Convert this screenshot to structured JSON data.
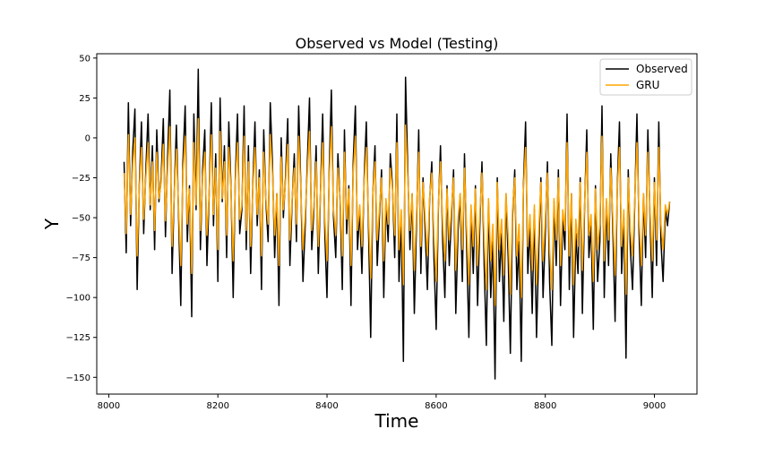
{
  "chart_data": {
    "type": "line",
    "title": "Observed vs Model (Testing)",
    "xlabel": "Time",
    "ylabel": "Y",
    "xlim": [
      7978,
      9078
    ],
    "ylim": [
      -160.5,
      52.7
    ],
    "xticks": [
      8000,
      8200,
      8400,
      8600,
      8800,
      9000
    ],
    "yticks": [
      50,
      25,
      0,
      -25,
      -50,
      -75,
      -100,
      -125,
      -150
    ],
    "grid": false,
    "legend_position": "top-right",
    "x_start": 8028,
    "x_step": 4,
    "series": [
      {
        "name": "Observed",
        "color": "#000000",
        "values": [
          -15,
          -72,
          22,
          -55,
          -8,
          18,
          -95,
          -30,
          10,
          -60,
          -20,
          15,
          -45,
          -5,
          -70,
          5,
          -40,
          -25,
          12,
          -62,
          -10,
          30,
          -85,
          -35,
          8,
          -50,
          -105,
          -15,
          20,
          -65,
          -30,
          -112,
          15,
          -45,
          43,
          -70,
          -20,
          5,
          -80,
          -35,
          22,
          -55,
          -10,
          -90,
          25,
          -40,
          -5,
          -75,
          10,
          -30,
          -100,
          -25,
          15,
          -60,
          -45,
          20,
          -70,
          -5,
          -85,
          -30,
          10,
          -55,
          -20,
          -95,
          5,
          -40,
          -65,
          22,
          -15,
          -75,
          -35,
          -105,
          0,
          -50,
          -25,
          12,
          -80,
          -40,
          -10,
          -65,
          20,
          -30,
          -90,
          -55,
          -15,
          25,
          -70,
          -45,
          -5,
          -85,
          -35,
          15,
          -60,
          -100,
          -20,
          30,
          -50,
          -75,
          -10,
          -40,
          -95,
          5,
          -60,
          -30,
          -105,
          -15,
          20,
          -70,
          -45,
          -85,
          -25,
          10,
          -55,
          -125,
          -35,
          -5,
          -80,
          -50,
          -20,
          -100,
          -40,
          -65,
          -10,
          -30,
          -75,
          15,
          -90,
          -50,
          -140,
          38,
          -20,
          -70,
          -35,
          -110,
          -55,
          5,
          -85,
          -25,
          -60,
          -95,
          -40,
          -15,
          -75,
          -120,
          -45,
          -5,
          -65,
          -100,
          -30,
          -80,
          -50,
          -20,
          -110,
          -60,
          -35,
          -90,
          -10,
          -70,
          -125,
          -45,
          -85,
          -30,
          -105,
          -55,
          -15,
          -80,
          -130,
          -40,
          -100,
          -65,
          -151,
          -25,
          -90,
          -60,
          -115,
          -35,
          -75,
          -135,
          -50,
          -20,
          -95,
          -65,
          -140,
          -30,
          10,
          -85,
          -55,
          -110,
          -45,
          -125,
          -70,
          -25,
          -100,
          -60,
          -15,
          -90,
          -130,
          -40,
          -80,
          -20,
          -105,
          -50,
          -70,
          15,
          -95,
          -35,
          -125,
          -60,
          -85,
          -25,
          -110,
          -45,
          5,
          -75,
          -55,
          -120,
          -30,
          -90,
          -65,
          20,
          -100,
          -40,
          -80,
          -10,
          -60,
          -115,
          -30,
          10,
          -85,
          -50,
          -138,
          -20,
          -70,
          -95,
          -40,
          15,
          -60,
          -105,
          -35,
          -75,
          5,
          -50,
          -100,
          -25,
          -80,
          10,
          -65,
          -90,
          -45,
          -55,
          -40
        ]
      },
      {
        "name": "GRU",
        "color": "#FFA500",
        "values": [
          -22,
          -60,
          2,
          -48,
          -17,
          0,
          -74,
          -32,
          -6,
          -51,
          -25,
          -3,
          -42,
          -15,
          -58,
          -9,
          -38,
          -28,
          -4,
          -52,
          -19,
          7,
          -68,
          -35,
          -7,
          -45,
          -80,
          -22,
          1,
          -54,
          -32,
          -85,
          -3,
          -42,
          12,
          -58,
          -25,
          -9,
          -61,
          -35,
          2,
          -48,
          -19,
          -70,
          4,
          -38,
          -15,
          -61,
          -6,
          -32,
          -77,
          -28,
          -3,
          -51,
          -42,
          1,
          -58,
          -15,
          -68,
          -32,
          -6,
          -48,
          -25,
          -74,
          -9,
          -38,
          -54,
          2,
          -22,
          -61,
          -35,
          -80,
          -12,
          -45,
          -28,
          -4,
          -64,
          -38,
          -19,
          -54,
          1,
          -32,
          -70,
          -48,
          -22,
          4,
          -58,
          -42,
          -15,
          -68,
          -35,
          -3,
          -51,
          -77,
          -25,
          7,
          -45,
          -61,
          -19,
          -38,
          -74,
          -9,
          -51,
          -32,
          -80,
          -22,
          1,
          -58,
          -42,
          -68,
          -28,
          -6,
          -48,
          -88,
          -35,
          -15,
          -64,
          -45,
          -25,
          -77,
          -38,
          -54,
          -19,
          -32,
          -61,
          -3,
          -70,
          -45,
          -92,
          8,
          -25,
          -58,
          -35,
          -83,
          -48,
          -9,
          -68,
          -28,
          -51,
          -74,
          -38,
          -22,
          -61,
          -90,
          -42,
          -15,
          -54,
          -77,
          -32,
          -64,
          -45,
          -25,
          -83,
          -51,
          -35,
          -70,
          -19,
          -58,
          -92,
          -42,
          -68,
          -32,
          -80,
          -48,
          -22,
          -64,
          -95,
          -38,
          -77,
          -54,
          -105,
          -28,
          -70,
          -51,
          -86,
          -35,
          -61,
          -98,
          -45,
          -25,
          -74,
          -54,
          -100,
          -32,
          -6,
          -68,
          -48,
          -83,
          -42,
          -92,
          -58,
          -28,
          -77,
          -51,
          -22,
          -70,
          -95,
          -38,
          -64,
          -25,
          -80,
          -45,
          -58,
          -3,
          -74,
          -35,
          -92,
          -51,
          -68,
          -28,
          -83,
          -42,
          -9,
          -61,
          -48,
          -90,
          -32,
          -70,
          -54,
          1,
          -77,
          -38,
          -64,
          -19,
          -51,
          -86,
          -32,
          -6,
          -68,
          -45,
          -98,
          -25,
          -58,
          -74,
          -38,
          -3,
          -51,
          -80,
          -35,
          -61,
          -9,
          -45,
          -77,
          -28,
          -64,
          -6,
          -54,
          -70,
          -42,
          -48,
          -40
        ]
      }
    ]
  }
}
